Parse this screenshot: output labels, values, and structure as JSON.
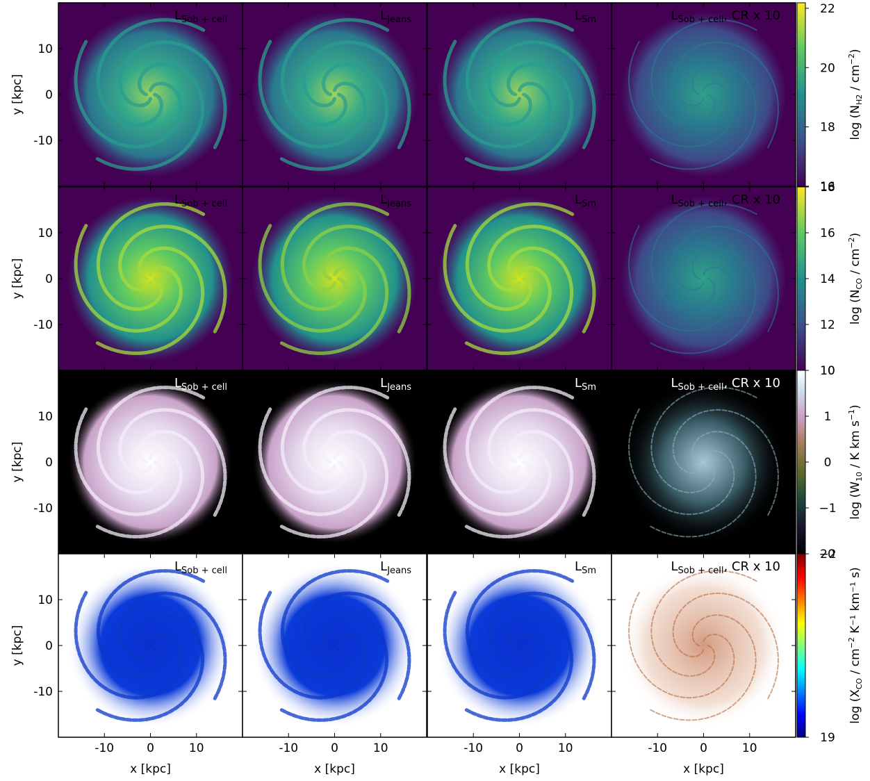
{
  "figure": {
    "x_axis_label": "x [kpc]",
    "y_axis_label": "y [kpc]",
    "x_ticks": [
      "-10",
      "0",
      "10"
    ],
    "y_ticks": [
      "10",
      "0",
      "-10"
    ],
    "columns": [
      {
        "label_main": "L",
        "label_sub": "Sob + cell",
        "label_suffix": ""
      },
      {
        "label_main": "L",
        "label_sub": "Jeans",
        "label_suffix": ""
      },
      {
        "label_main": "L",
        "label_sub": "Sm",
        "label_suffix": ""
      },
      {
        "label_main": "L",
        "label_sub": "Sob + cell",
        "label_suffix": ", CR x 10"
      }
    ],
    "rows": [
      {
        "quantity": "N_H2",
        "colormap": "viridis",
        "background": "#440154",
        "colorbar_ticks": [
          "22",
          "20",
          "18",
          "16"
        ],
        "colorbar_label": "log (N_H2 / cm^-2)",
        "colorbar_label_text": {
          "pre": "log (N",
          "sub": "H2",
          "mid": " / cm",
          "sup": "−2",
          "post": ")"
        }
      },
      {
        "quantity": "N_CO",
        "colormap": "viridis",
        "background": "#440154",
        "colorbar_ticks": [
          "18",
          "16",
          "14",
          "12",
          "10"
        ],
        "colorbar_label": "log (N_CO / cm^-2)",
        "colorbar_label_text": {
          "pre": "log (N",
          "sub": "CO",
          "mid": " / cm",
          "sup": "−2",
          "post": ")"
        }
      },
      {
        "quantity": "W_10",
        "colormap": "cubehelix",
        "background": "#000000",
        "colorbar_ticks": [
          "10",
          "1",
          "0",
          "−1",
          "−2"
        ],
        "colorbar_label": "log (W_10 / K km s^-1)",
        "colorbar_label_text": {
          "pre": "log (W",
          "sub": "10",
          "mid": " / K km s",
          "sup": "−1",
          "post": ")"
        }
      },
      {
        "quantity": "X_CO",
        "colormap": "jet",
        "background": "#ffffff",
        "colorbar_ticks": [
          "20",
          "19"
        ],
        "colorbar_label": "log (X_CO / cm^-2 K^-1 km^-1 s)",
        "colorbar_label_text": {
          "pre": "log (X",
          "sub": "CO",
          "mid": " / cm",
          "sup": "−2",
          "post": " K⁻¹ km⁻¹ s)"
        }
      }
    ]
  }
}
